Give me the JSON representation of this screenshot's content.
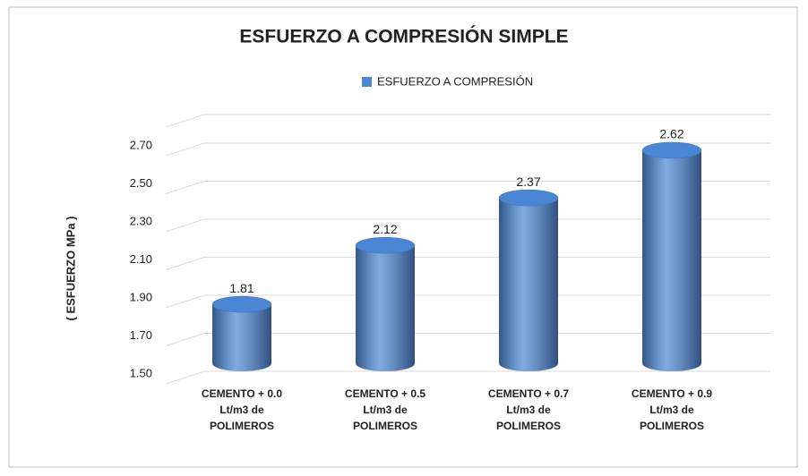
{
  "chart_data": {
    "type": "cylinder-bar",
    "title": "ESFUERZO A COMPRESIÓN SIMPLE",
    "y_axis_label": "( ESFUERZO MPa )",
    "categories": [
      [
        "CEMENTO + 0.0",
        "Lt/m3 de",
        "POLIMEROS"
      ],
      [
        "CEMENTO + 0.5",
        "Lt/m3 de",
        "POLIMEROS"
      ],
      [
        "CEMENTO + 0.7",
        "Lt/m3 de",
        "POLIMEROS"
      ],
      [
        "CEMENTO + 0.9",
        "Lt/m3 de",
        "POLIMEROS"
      ]
    ],
    "series": [
      {
        "name": "ESFUERZO A COMPRESIÓN",
        "color": "#4a86d4",
        "values": [
          1.81,
          2.12,
          2.37,
          2.62
        ]
      }
    ],
    "ylim": [
      1.5,
      2.7
    ],
    "yticks": [
      {
        "value": 1.5,
        "label": "1.50"
      },
      {
        "value": 1.7,
        "label": "1.70"
      },
      {
        "value": 1.9,
        "label": "1.90"
      },
      {
        "value": 2.1,
        "label": "2.10"
      },
      {
        "value": 2.3,
        "label": "2.30"
      },
      {
        "value": 2.5,
        "label": "2.50"
      },
      {
        "value": 2.7,
        "label": "2.70"
      }
    ],
    "grid": true,
    "legend": "top"
  }
}
